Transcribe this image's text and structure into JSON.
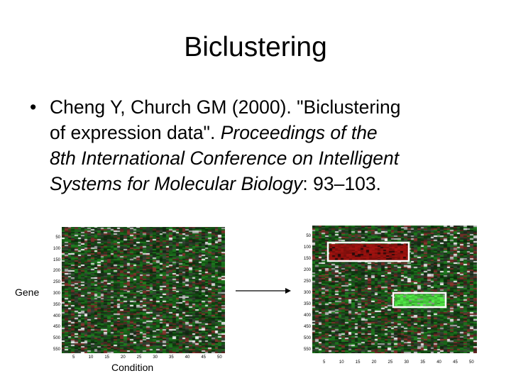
{
  "slide": {
    "title": "Biclustering",
    "bullet_symbol": "•",
    "citation": {
      "line1": "Cheng Y, Church GM (2000). \"Biclustering",
      "line2_plain": "of expression data\". ",
      "line2_italic": "Proceedings of the",
      "line3_italic": "8th International Conference on Intelligent",
      "line4_italic": "Systems for Molecular Biology",
      "line4_plain": ": 93–103."
    }
  },
  "figure": {
    "gene_axis_label": "Gene",
    "condition_axis_label": "Condition",
    "colors": {
      "high": "#8b0000",
      "low": "#00b000",
      "base": "#0d2a0d",
      "bicluster_frame": "#ffffff"
    },
    "left_heatmap": {
      "y_ticks": [
        "50",
        "100",
        "150",
        "200",
        "250",
        "300",
        "350",
        "400",
        "450",
        "500",
        "550"
      ],
      "x_ticks": [
        "5",
        "10",
        "15",
        "20",
        "25",
        "30",
        "35",
        "40",
        "45",
        "50"
      ]
    },
    "right_heatmap": {
      "y_ticks": [
        "50",
        "100",
        "150",
        "200",
        "250",
        "300",
        "350",
        "400",
        "450",
        "500",
        "550"
      ],
      "x_ticks": [
        "5",
        "10",
        "15",
        "20",
        "25",
        "30",
        "35",
        "40",
        "45",
        "50"
      ]
    }
  }
}
